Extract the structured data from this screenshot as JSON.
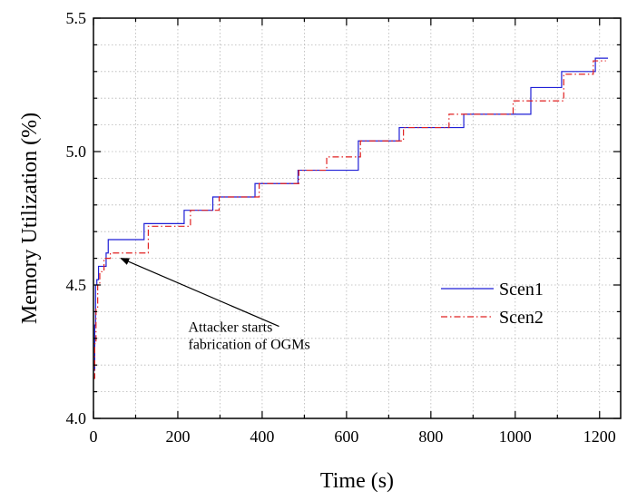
{
  "chart_data": {
    "type": "line",
    "title": "",
    "xlabel": "Time (s)",
    "ylabel": "Memory Utilization (%)",
    "xlim": [
      0,
      1250
    ],
    "ylim": [
      4.0,
      5.5
    ],
    "xticks": [
      "0",
      "200",
      "400",
      "600",
      "800",
      "1000",
      "1200"
    ],
    "yticks": [
      "4.0",
      "4.5",
      "5.0",
      "5.5"
    ],
    "grid": true,
    "legend_position": "center-right",
    "series": [
      {
        "name": "Scen1",
        "color": "#1f1fd6",
        "style": "solid",
        "step": true,
        "x": [
          0,
          3,
          5,
          8,
          12,
          20,
          30,
          35,
          120,
          215,
          283,
          383,
          485,
          628,
          725,
          878,
          1037,
          1110,
          1190,
          1220
        ],
        "y": [
          4.18,
          4.35,
          4.5,
          4.52,
          4.57,
          4.57,
          4.62,
          4.67,
          4.73,
          4.78,
          4.83,
          4.88,
          4.93,
          5.04,
          5.09,
          5.14,
          5.24,
          5.3,
          5.35,
          5.35
        ]
      },
      {
        "name": "Scen2",
        "color": "#e02020",
        "style": "dashdot",
        "step": true,
        "x": [
          0,
          3,
          6,
          10,
          15,
          25,
          40,
          130,
          230,
          298,
          393,
          487,
          553,
          633,
          735,
          843,
          995,
          1115,
          1185,
          1215
        ],
        "y": [
          4.15,
          4.28,
          4.41,
          4.5,
          4.55,
          4.6,
          4.62,
          4.72,
          4.78,
          4.83,
          4.88,
          4.93,
          4.98,
          5.04,
          5.09,
          5.14,
          5.19,
          5.29,
          5.34,
          5.34
        ]
      }
    ],
    "annotations": [
      {
        "lines": [
          "Attacker starts",
          "fabrication of OGMs"
        ],
        "text_x": 440,
        "text_y": 4.325,
        "arrow_from": [
          440,
          4.345
        ],
        "arrow_to": [
          65,
          4.6
        ]
      }
    ]
  }
}
